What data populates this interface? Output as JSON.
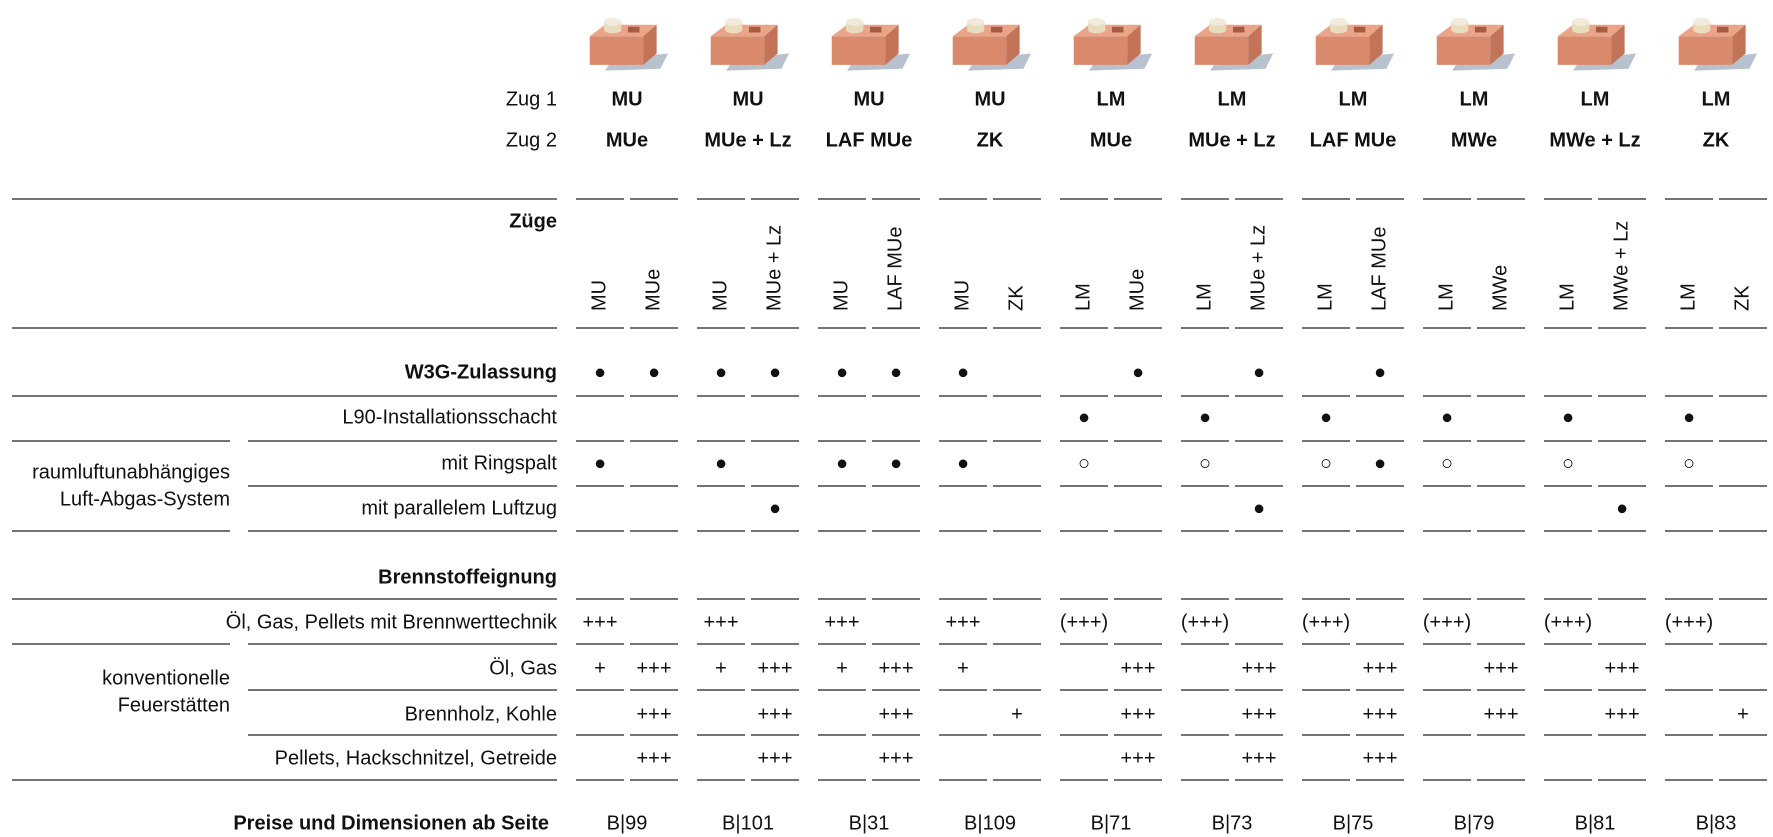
{
  "labels": {
    "zug1": "Zug 1",
    "zug2": "Zug 2",
    "zuege": "Züge",
    "page": "Preise und Dimensionen ab Seite"
  },
  "columns": [
    {
      "zug1": "MU",
      "zug2": "MUe",
      "zuege": [
        "MU",
        "MUe"
      ],
      "page": "B|99"
    },
    {
      "zug1": "MU",
      "zug2": "MUe + Lz",
      "zuege": [
        "MU",
        "MUe + Lz"
      ],
      "page": "B|101"
    },
    {
      "zug1": "MU",
      "zug2": "LAF MUe",
      "zuege": [
        "MU",
        "LAF MUe"
      ],
      "page": "B|31"
    },
    {
      "zug1": "MU",
      "zug2": "ZK",
      "zuege": [
        "MU",
        "ZK"
      ],
      "page": "B|109"
    },
    {
      "zug1": "LM",
      "zug2": "MUe",
      "zuege": [
        "LM",
        "MUe"
      ],
      "page": "B|71"
    },
    {
      "zug1": "LM",
      "zug2": "MUe + Lz",
      "zuege": [
        "LM",
        "MUe + Lz"
      ],
      "page": "B|73"
    },
    {
      "zug1": "LM",
      "zug2": "LAF MUe",
      "zuege": [
        "LM",
        "LAF MUe"
      ],
      "page": "B|75"
    },
    {
      "zug1": "LM",
      "zug2": "MWe",
      "zuege": [
        "LM",
        "MWe"
      ],
      "page": "B|79"
    },
    {
      "zug1": "LM",
      "zug2": "MWe + Lz",
      "zuege": [
        "LM",
        "MWe + Lz"
      ],
      "page": "B|81"
    },
    {
      "zug1": "LM",
      "zug2": "ZK",
      "zuege": [
        "LM",
        "ZK"
      ],
      "page": "B|83"
    }
  ],
  "w3g": {
    "label": "W3G-Zulassung",
    "cells": [
      "●",
      "●",
      "●",
      "●",
      "●",
      "●",
      "●",
      null,
      null,
      "●",
      null,
      "●",
      null,
      "●",
      null,
      null,
      null,
      null,
      null,
      null
    ]
  },
  "l90": {
    "label": "L90-Installationsschacht",
    "cells": [
      null,
      null,
      null,
      null,
      null,
      null,
      null,
      null,
      "●",
      null,
      "●",
      null,
      "●",
      null,
      "●",
      null,
      "●",
      null,
      "●",
      null
    ]
  },
  "luft_abgas": {
    "group": [
      "raumluftunabhängiges",
      "Luft-Abgas-System"
    ],
    "rows": [
      {
        "label": "mit Ringspalt",
        "cells": [
          "●",
          null,
          "●",
          null,
          "●",
          "●",
          "●",
          null,
          "○",
          null,
          "○",
          null,
          "○",
          "●",
          "○",
          null,
          "○",
          null,
          "○",
          null
        ]
      },
      {
        "label": "mit parallelem Luftzug",
        "cells": [
          null,
          null,
          null,
          "●",
          null,
          null,
          null,
          null,
          null,
          null,
          null,
          "●",
          null,
          null,
          null,
          null,
          null,
          "●",
          null,
          null
        ]
      }
    ]
  },
  "brennstoff": {
    "label": "Brennstoffeignung",
    "brennwert": {
      "label": "Öl, Gas, Pellets mit Brennwerttechnik",
      "cells": [
        "+++",
        null,
        "+++",
        null,
        "+++",
        null,
        "+++",
        null,
        "(+++)",
        null,
        "(+++)",
        null,
        "(+++)",
        null,
        "(+++)",
        null,
        "(+++)",
        null,
        "(+++)",
        null
      ]
    },
    "konventionell": {
      "group": [
        "konventionelle",
        "Feuerstätten"
      ],
      "rows": [
        {
          "label": "Öl, Gas",
          "cells": [
            "+",
            "+++",
            "+",
            "+++",
            "+",
            "+++",
            "+",
            null,
            null,
            "+++",
            null,
            "+++",
            null,
            "+++",
            null,
            "+++",
            null,
            "+++",
            null,
            null
          ]
        },
        {
          "label": "Brennholz, Kohle",
          "cells": [
            null,
            "+++",
            null,
            "+++",
            null,
            "+++",
            null,
            "+",
            null,
            "+++",
            null,
            "+++",
            null,
            "+++",
            null,
            "+++",
            null,
            "+++",
            null,
            "+"
          ]
        },
        {
          "label": "Pellets, Hackschnitzel, Getreide",
          "cells": [
            null,
            "+++",
            null,
            "+++",
            null,
            "+++",
            null,
            null,
            null,
            "+++",
            null,
            "+++",
            null,
            "+++",
            null,
            null,
            null,
            null,
            null,
            null
          ]
        }
      ]
    }
  }
}
